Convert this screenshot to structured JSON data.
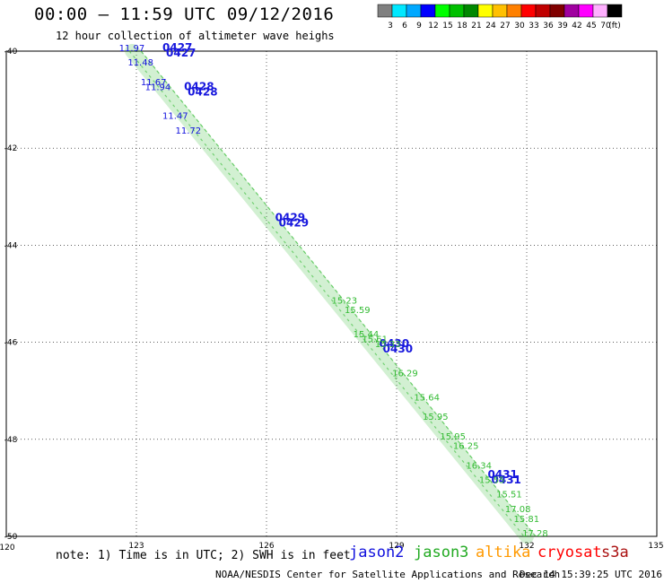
{
  "header": {
    "title": "00:00 – 11:59 UTC 09/12/2016",
    "subtitle": "12 hour collection of altimeter wave heighs"
  },
  "legend": {
    "unit": "(ft)",
    "bins": [
      {
        "label": "3",
        "color": "#808080"
      },
      {
        "label": "6",
        "color": "#00e8ff"
      },
      {
        "label": "9",
        "color": "#00a8ff"
      },
      {
        "label": "12",
        "color": "#0000ff"
      },
      {
        "label": "15",
        "color": "#00ff00"
      },
      {
        "label": "18",
        "color": "#00c000"
      },
      {
        "label": "21",
        "color": "#008800"
      },
      {
        "label": "24",
        "color": "#ffff00"
      },
      {
        "label": "27",
        "color": "#ffc000"
      },
      {
        "label": "30",
        "color": "#ff8000"
      },
      {
        "label": "33",
        "color": "#ff0000"
      },
      {
        "label": "36",
        "color": "#c00000"
      },
      {
        "label": "39",
        "color": "#800000"
      },
      {
        "label": "42",
        "color": "#a000a0"
      },
      {
        "label": "45",
        "color": "#ff00ff"
      },
      {
        "label": "70",
        "color": "#ffb0ff"
      },
      {
        "label": "",
        "color": "#000000"
      }
    ]
  },
  "map": {
    "lon_range": [
      120,
      135
    ],
    "lat_range": [
      -50,
      -40
    ],
    "lon_ticks": [
      "123",
      "126",
      "129",
      "132"
    ],
    "lon_edge_labels": [
      "120",
      "135"
    ],
    "lat_ticks": [
      "-40",
      "-42",
      "-44",
      "-46",
      "-48",
      "-50"
    ],
    "grid_lon": [
      123,
      126,
      129,
      132
    ],
    "grid_lat": [
      -42,
      -44,
      -46,
      -48
    ]
  },
  "chart_data": {
    "type": "scatter",
    "x_field": "longitude",
    "y_field": "latitude",
    "series": [
      {
        "name": "jason2",
        "color": "#1010dd",
        "points": [
          {
            "lon": 122.6,
            "lat": -40.0,
            "text": "11.97"
          },
          {
            "lon": 122.8,
            "lat": -40.3,
            "text": "11.48"
          },
          {
            "lon": 123.1,
            "lat": -40.7,
            "text": "11.67"
          },
          {
            "lon": 123.2,
            "lat": -40.8,
            "text": "11.94"
          },
          {
            "lon": 123.6,
            "lat": -41.4,
            "text": "11.47"
          },
          {
            "lon": 123.9,
            "lat": -41.7,
            "text": "11.72"
          }
        ],
        "pass_labels": [
          {
            "lon": 123.6,
            "lat": -40.0,
            "text": "0427"
          },
          {
            "lon": 124.1,
            "lat": -40.8,
            "text": "0428"
          },
          {
            "lon": 126.2,
            "lat": -43.5,
            "text": "0429"
          },
          {
            "lon": 128.6,
            "lat": -46.1,
            "text": "0430"
          },
          {
            "lon": 131.1,
            "lat": -48.8,
            "text": "0431"
          }
        ]
      },
      {
        "name": "jason3",
        "color": "#33bb33",
        "track": [
          {
            "lon": 122.9,
            "lat": -40.0
          },
          {
            "lon": 132.0,
            "lat": -50.0
          }
        ],
        "points": [
          {
            "lon": 127.5,
            "lat": -45.2,
            "text": "15.23"
          },
          {
            "lon": 127.8,
            "lat": -45.4,
            "text": "15.59"
          },
          {
            "lon": 128.0,
            "lat": -45.9,
            "text": "15.44"
          },
          {
            "lon": 128.2,
            "lat": -46.0,
            "text": "15.61"
          },
          {
            "lon": 128.5,
            "lat": -46.1,
            "text": "15.33"
          },
          {
            "lon": 128.9,
            "lat": -46.7,
            "text": "16.29"
          },
          {
            "lon": 129.4,
            "lat": -47.2,
            "text": "15.64"
          },
          {
            "lon": 129.6,
            "lat": -47.6,
            "text": "15.95"
          },
          {
            "lon": 130.0,
            "lat": -48.0,
            "text": "15.95"
          },
          {
            "lon": 130.3,
            "lat": -48.2,
            "text": "16.25"
          },
          {
            "lon": 130.6,
            "lat": -48.6,
            "text": "16.34"
          },
          {
            "lon": 130.9,
            "lat": -48.9,
            "text": "15.55"
          },
          {
            "lon": 131.3,
            "lat": -49.2,
            "text": "15.51"
          },
          {
            "lon": 131.5,
            "lat": -49.5,
            "text": "17.08"
          },
          {
            "lon": 131.7,
            "lat": -49.7,
            "text": "15.81"
          },
          {
            "lon": 131.9,
            "lat": -50.0,
            "text": "17.28"
          }
        ]
      }
    ]
  },
  "footer": {
    "note": "note: 1) Time is in UTC; 2) SWH is in feet",
    "satellites": [
      {
        "label": "jason2",
        "color": "#1010dd"
      },
      {
        "label": "jason3",
        "color": "#22aa22"
      },
      {
        "label": "altika",
        "color": "#ff9900"
      },
      {
        "label": "cryosat",
        "color": "#ff0000"
      },
      {
        "label": "s3a",
        "color": "#aa1010"
      }
    ],
    "credit": "NOAA/NESDIS Center for Satellite Applications and Research",
    "stamp": "Dec 14 15:39:25 UTC 2016"
  }
}
